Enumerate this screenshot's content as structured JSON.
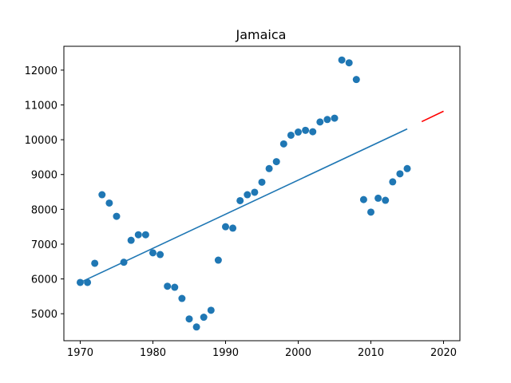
{
  "chart_data": {
    "type": "scatter",
    "title": "Jamaica",
    "xlabel": "",
    "ylabel": "",
    "xlim": [
      1967.75,
      2022.25
    ],
    "ylim": [
      4225,
      12685
    ],
    "x_ticks": [
      1970,
      1980,
      1990,
      2000,
      2010,
      2020
    ],
    "y_ticks": [
      5000,
      6000,
      7000,
      8000,
      9000,
      10000,
      11000,
      12000
    ],
    "grid": false,
    "colors": {
      "points": "#1f77b4",
      "trend": "#1f77b4",
      "forecast": "#ff0000"
    },
    "series": [
      {
        "kind": "scatter",
        "x": [
          1970,
          1971,
          1972,
          1973,
          1974,
          1975,
          1976,
          1977,
          1978,
          1979,
          1980,
          1981,
          1982,
          1983,
          1984,
          1985,
          1986,
          1987,
          1988,
          1989,
          1990,
          1991,
          1992,
          1993,
          1994,
          1995,
          1996,
          1997,
          1998,
          1999,
          2000,
          2001,
          2002,
          2003,
          2004,
          2005,
          2006,
          2007,
          2008,
          2009,
          2010,
          2011,
          2012,
          2013,
          2014,
          2015
        ],
        "y": [
          5900,
          5900,
          6450,
          8420,
          8180,
          7800,
          6480,
          7110,
          7270,
          7270,
          6750,
          6700,
          5790,
          5760,
          5440,
          4850,
          4620,
          4900,
          5100,
          6540,
          7500,
          7460,
          8250,
          8420,
          8490,
          8780,
          9170,
          9370,
          9880,
          10130,
          10220,
          10270,
          10230,
          10510,
          10580,
          10620,
          12290,
          12210,
          11730,
          8280,
          7920,
          8320,
          8260,
          8790,
          9020,
          9170
        ]
      },
      {
        "kind": "line",
        "x": [
          1970,
          2015
        ],
        "y": [
          5900,
          10310
        ]
      },
      {
        "kind": "line",
        "x": [
          2017,
          2020
        ],
        "y": [
          10520,
          10820
        ]
      }
    ]
  }
}
